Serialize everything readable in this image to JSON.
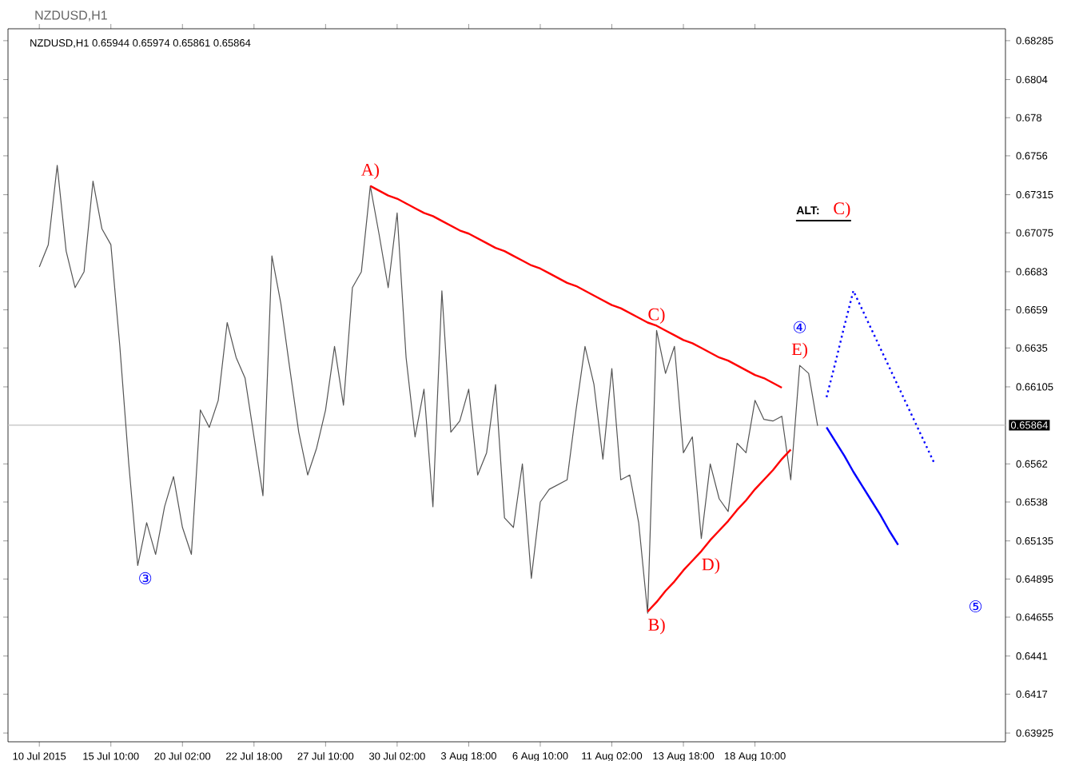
{
  "chart_data": {
    "type": "line",
    "title": "NZDUSD,H1",
    "subtitle": "NZDUSD,H1  0.65944 0.65974 0.65861 0.65864",
    "categories": [
      "10 Jul 2015",
      null,
      null,
      null,
      null,
      null,
      null,
      null,
      "15 Jul 10:00",
      null,
      null,
      null,
      null,
      null,
      null,
      null,
      "20 Jul 02:00",
      null,
      null,
      null,
      null,
      null,
      null,
      null,
      "22 Jul 18:00",
      null,
      null,
      null,
      null,
      null,
      null,
      null,
      "27 Jul 10:00",
      null,
      null,
      null,
      null,
      null,
      null,
      null,
      "30 Jul 02:00",
      null,
      null,
      null,
      null,
      null,
      null,
      null,
      "3 Aug 18:00",
      null,
      null,
      null,
      null,
      null,
      null,
      null,
      "6 Aug 10:00",
      null,
      null,
      null,
      null,
      null,
      null,
      null,
      "11 Aug 02:00",
      null,
      null,
      null,
      null,
      null,
      null,
      null,
      "13 Aug 18:00",
      null,
      null,
      null,
      null,
      null,
      null,
      null,
      "18 Aug 10:00",
      null,
      null,
      null,
      null,
      null,
      null,
      null,
      null,
      null,
      null,
      null,
      null,
      null,
      null,
      null,
      null,
      null,
      null,
      null,
      null
    ],
    "ylim": [
      0.6387,
      0.6836
    ],
    "yticks": [
      0.63925,
      0.6417,
      0.6441,
      0.64655,
      0.64895,
      0.65135,
      0.6538,
      0.6562,
      0.66105,
      0.6635,
      0.6659,
      0.6683,
      0.67075,
      0.67315,
      0.6756,
      0.678,
      0.6804,
      0.68285
    ],
    "grid": false,
    "marker": "none",
    "series": [
      {
        "color": "#555555",
        "line_style": "solid",
        "values": [
          0.6686,
          0.67,
          0.675,
          0.6696,
          0.6673,
          0.6683,
          0.674,
          0.671,
          0.67,
          0.6636,
          0.6562,
          0.6498,
          0.6525,
          0.6505,
          0.6535,
          0.6554,
          0.6522,
          0.6505,
          0.6596,
          0.6585,
          0.6602,
          0.6651,
          0.6629,
          0.6616,
          0.6579,
          0.6542,
          0.6693,
          0.6663,
          0.6622,
          0.6582,
          0.6555,
          0.6572,
          0.6596,
          0.6636,
          0.6599,
          0.6673,
          0.6683,
          0.6737,
          0.6706,
          0.6673,
          0.672,
          0.6629,
          0.6579,
          0.6609,
          0.6535,
          0.6671,
          0.6582,
          0.6589,
          0.6609,
          0.6555,
          0.6569,
          0.6612,
          0.6528,
          0.6522,
          0.6562,
          0.649,
          0.6538,
          0.6546,
          0.6549,
          0.6552,
          0.6596,
          0.6636,
          0.6612,
          0.6565,
          0.6622,
          0.6552,
          0.6555,
          0.6525,
          0.6468,
          0.6646,
          0.6619,
          0.6636,
          0.6569,
          0.6579,
          0.6515,
          0.6562,
          0.654,
          0.6532,
          0.6575,
          0.6569,
          0.6602,
          0.659,
          0.6589,
          0.6592,
          0.6552,
          0.6624,
          0.6619,
          0.6586,
          null,
          null,
          null,
          null,
          null,
          null,
          null,
          null,
          null,
          null,
          null,
          null,
          null
        ]
      },
      {
        "color": "#ff0000",
        "line_style": "solid",
        "values": [
          null,
          null,
          null,
          null,
          null,
          null,
          null,
          null,
          null,
          null,
          null,
          null,
          null,
          null,
          null,
          null,
          null,
          null,
          null,
          null,
          null,
          null,
          null,
          null,
          null,
          null,
          null,
          null,
          null,
          null,
          null,
          null,
          null,
          null,
          null,
          null,
          null,
          0.6737,
          0.6734,
          0.6731,
          0.6729,
          0.6726,
          0.6723,
          0.672,
          0.6718,
          0.6715,
          0.6712,
          0.6709,
          0.6707,
          0.6704,
          0.6701,
          0.6698,
          0.6696,
          0.6693,
          0.669,
          0.6687,
          0.6685,
          0.6682,
          0.6679,
          0.6676,
          0.6674,
          0.6671,
          0.6668,
          0.6665,
          0.6662,
          0.666,
          0.6657,
          0.6654,
          0.6651,
          0.6649,
          0.6646,
          0.6643,
          0.664,
          0.6638,
          0.6635,
          0.6632,
          0.6629,
          0.6627,
          0.6624,
          0.6621,
          0.6618,
          0.6616,
          0.6613,
          0.661,
          null,
          null,
          null,
          null,
          null,
          null,
          null,
          null,
          null,
          null,
          null,
          null,
          null,
          null,
          null,
          null,
          null
        ]
      },
      {
        "color": "#ff0000",
        "line_style": "solid",
        "values": [
          null,
          null,
          null,
          null,
          null,
          null,
          null,
          null,
          null,
          null,
          null,
          null,
          null,
          null,
          null,
          null,
          null,
          null,
          null,
          null,
          null,
          null,
          null,
          null,
          null,
          null,
          null,
          null,
          null,
          null,
          null,
          null,
          null,
          null,
          null,
          null,
          null,
          null,
          null,
          null,
          null,
          null,
          null,
          null,
          null,
          null,
          null,
          null,
          null,
          null,
          null,
          null,
          null,
          null,
          null,
          null,
          null,
          null,
          null,
          null,
          null,
          null,
          null,
          null,
          null,
          null,
          null,
          null,
          0.6469,
          0.6475,
          0.6482,
          0.6488,
          0.6495,
          0.6501,
          0.6507,
          0.6514,
          0.652,
          0.6526,
          0.6533,
          0.6539,
          0.6546,
          0.6552,
          0.6558,
          0.6565,
          0.6571,
          null,
          null,
          null,
          null,
          null,
          null,
          null,
          null,
          null,
          null,
          null,
          null,
          null,
          null,
          null,
          null
        ]
      },
      {
        "color": "#0000ff",
        "line_style": "solid",
        "values": [
          null,
          null,
          null,
          null,
          null,
          null,
          null,
          null,
          null,
          null,
          null,
          null,
          null,
          null,
          null,
          null,
          null,
          null,
          null,
          null,
          null,
          null,
          null,
          null,
          null,
          null,
          null,
          null,
          null,
          null,
          null,
          null,
          null,
          null,
          null,
          null,
          null,
          null,
          null,
          null,
          null,
          null,
          null,
          null,
          null,
          null,
          null,
          null,
          null,
          null,
          null,
          null,
          null,
          null,
          null,
          null,
          null,
          null,
          null,
          null,
          null,
          null,
          null,
          null,
          null,
          null,
          null,
          null,
          null,
          null,
          null,
          null,
          null,
          null,
          null,
          null,
          null,
          null,
          null,
          null,
          null,
          null,
          null,
          null,
          null,
          null,
          null,
          null,
          0.6585,
          0.6576,
          0.6567,
          0.6557,
          0.6548,
          0.6539,
          0.653,
          0.652,
          0.6511,
          null,
          null,
          null,
          null
        ]
      },
      {
        "color": "#0000ff",
        "line_style": "dotted",
        "values": [
          null,
          null,
          null,
          null,
          null,
          null,
          null,
          null,
          null,
          null,
          null,
          null,
          null,
          null,
          null,
          null,
          null,
          null,
          null,
          null,
          null,
          null,
          null,
          null,
          null,
          null,
          null,
          null,
          null,
          null,
          null,
          null,
          null,
          null,
          null,
          null,
          null,
          null,
          null,
          null,
          null,
          null,
          null,
          null,
          null,
          null,
          null,
          null,
          null,
          null,
          null,
          null,
          null,
          null,
          null,
          null,
          null,
          null,
          null,
          null,
          null,
          null,
          null,
          null,
          null,
          null,
          null,
          null,
          null,
          null,
          null,
          null,
          null,
          null,
          null,
          null,
          null,
          null,
          null,
          null,
          null,
          null,
          null,
          null,
          null,
          null,
          null,
          null,
          0.6604,
          0.6626,
          0.6649,
          0.6671,
          0.6659,
          0.6647,
          0.6635,
          0.6623,
          0.6611,
          0.6599,
          0.6587,
          0.6575,
          0.6563
        ]
      }
    ],
    "ref_lines": [
      {
        "axis": "y",
        "value": 0.65864,
        "label": "0.65864",
        "color": "#c0c0c0"
      }
    ],
    "annotations": [
      {
        "text": "A)",
        "y": 0.6737
      },
      {
        "text": "B)",
        "y": 0.6469
      },
      {
        "text": "C)",
        "y": 0.6646
      },
      {
        "text": "D)",
        "y": 0.6507
      },
      {
        "text": "E)",
        "y": 0.6624
      },
      {
        "text": "③",
        "y": 0.6498
      },
      {
        "text": "④",
        "y": 0.6624
      },
      "⑤",
      "ALT:",
      "C)"
    ]
  }
}
